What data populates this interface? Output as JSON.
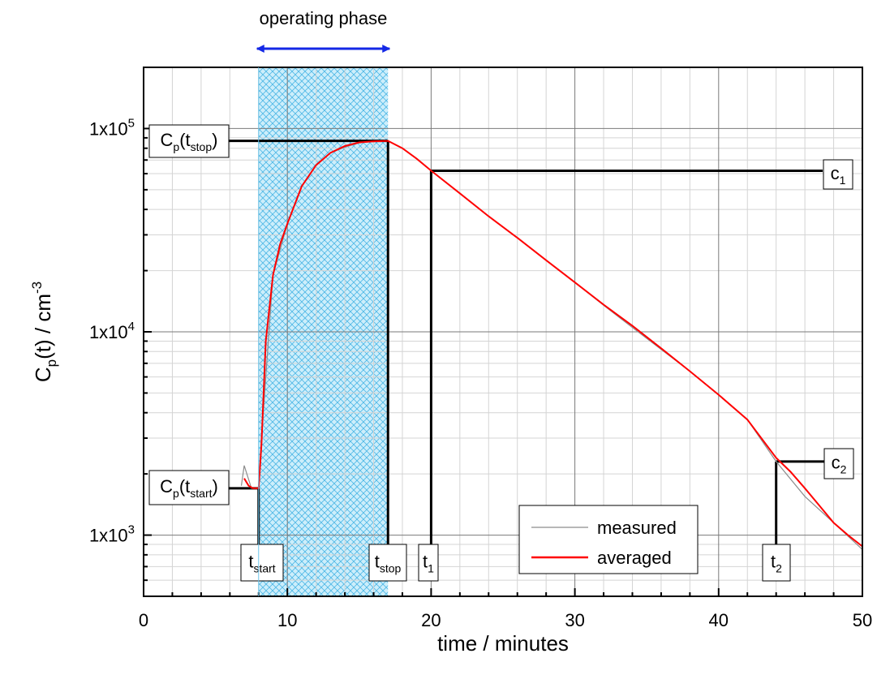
{
  "chart_data": {
    "type": "line",
    "title": "",
    "xlabel": "time / minutes",
    "ylabel": {
      "main": "C",
      "sub": "p",
      "rest": "(t) / cm",
      "sup": "-3"
    },
    "xlim": [
      0,
      50
    ],
    "ylim": [
      500,
      200000
    ],
    "yscale": "log",
    "grid": true,
    "x_ticks": [
      0,
      10,
      20,
      30,
      40,
      50
    ],
    "x_tick_labels": [
      "0",
      "10",
      "20",
      "30",
      "40",
      "50"
    ],
    "y_ticks": [
      1000,
      10000,
      100000
    ],
    "y_tick_labels": [
      {
        "base": "1x10",
        "exp": "3"
      },
      {
        "base": "1x10",
        "exp": "4"
      },
      {
        "base": "1x10",
        "exp": "5"
      }
    ],
    "legend": {
      "position": "bottom-right",
      "entries": [
        {
          "label": "measured",
          "color": "#8c8c8c"
        },
        {
          "label": "averaged",
          "color": "#ff0000"
        }
      ]
    },
    "shaded_region": {
      "label": "operating phase",
      "x": [
        8,
        17
      ],
      "color": "#b8e4f7",
      "hatch_color": "#4fb8e6",
      "arrow_color": "#1428e6"
    },
    "series": [
      {
        "name": "measured",
        "color": "#8c8c8c",
        "x": [
          6.8,
          7.0,
          7.5,
          8.0,
          8.2,
          9.0,
          10,
          11,
          12,
          13,
          14,
          15,
          16,
          17,
          18,
          19,
          20,
          22,
          24,
          26,
          28,
          30,
          32,
          34,
          36,
          38,
          40,
          42,
          44,
          46,
          48,
          50
        ],
        "y": [
          1750,
          2200,
          1700,
          1700,
          3000,
          19000,
          34000,
          52000,
          66000,
          76000,
          81000,
          85000,
          86500,
          87000,
          80000,
          71000,
          62000,
          48000,
          37000,
          29000,
          22500,
          17500,
          13500,
          10500,
          8200,
          6400,
          4900,
          3700,
          2300,
          1550,
          1150,
          850
        ]
      },
      {
        "name": "averaged",
        "color": "#ff0000",
        "x": [
          7.0,
          7.3,
          7.6,
          8.0,
          8.2,
          8.5,
          9.0,
          9.5,
          10,
          11,
          12,
          13,
          14,
          15,
          16,
          17,
          18,
          19,
          20,
          22,
          24,
          26,
          28,
          30,
          32,
          34,
          36,
          38,
          40,
          42,
          44,
          45,
          46,
          47,
          48,
          49,
          50
        ],
        "y": [
          1900,
          1750,
          1700,
          1700,
          2800,
          9000,
          19000,
          27000,
          34000,
          52000,
          66000,
          76000,
          82000,
          85500,
          86500,
          87000,
          80000,
          71000,
          62000,
          48000,
          37000,
          29000,
          22500,
          17500,
          13600,
          10700,
          8300,
          6400,
          4900,
          3700,
          2400,
          2050,
          1700,
          1400,
          1150,
          1000,
          880
        ]
      }
    ],
    "reference_lines": {
      "tstop_level": 87000,
      "c1_level": 62000,
      "c2_level": 2300,
      "tstart_level": 1700,
      "t_start": 8,
      "t_stop": 17,
      "t_1": 20,
      "t_2": 44
    },
    "annotations": [
      {
        "main": "C",
        "sub": "p",
        "rest": "(t",
        "sub2": "stop",
        "close": ")"
      },
      {
        "main": "C",
        "sub": "p",
        "rest": "(t",
        "sub2": "start",
        "close": ")"
      },
      {
        "main": "c",
        "sub": "1"
      },
      {
        "main": "c",
        "sub": "2"
      },
      {
        "main": "t",
        "sub": "start"
      },
      {
        "main": "t",
        "sub": "stop"
      },
      {
        "main": "t",
        "sub": "1"
      },
      {
        "main": "t",
        "sub": "2"
      }
    ]
  }
}
